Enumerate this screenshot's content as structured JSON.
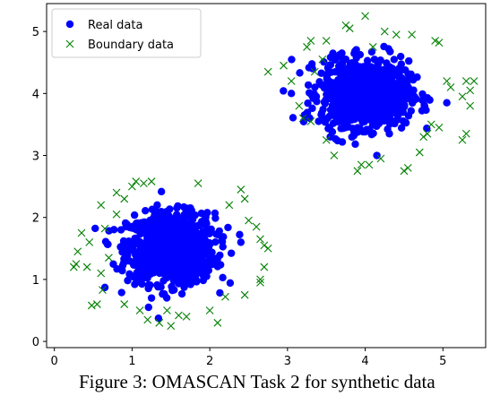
{
  "caption": "Figure 3: OMASCAN Task 2 for synthetic data",
  "chart_data": {
    "type": "scatter",
    "title": "",
    "xlabel": "",
    "ylabel": "",
    "xlim": [
      -0.1,
      5.55
    ],
    "ylim": [
      -0.1,
      5.45
    ],
    "xticks": [
      0,
      1,
      2,
      3,
      4,
      5
    ],
    "yticks": [
      0,
      1,
      2,
      3,
      4,
      5
    ],
    "grid": false,
    "legend_position": "top-left",
    "series": [
      {
        "name": "Real data",
        "marker": "circle",
        "color": "#0000ff",
        "clusters": [
          {
            "center": [
              1.5,
              1.5
            ],
            "std": [
              0.28,
              0.28
            ],
            "count": 1000
          },
          {
            "center": [
              4.0,
              4.0
            ],
            "std": [
              0.28,
              0.26
            ],
            "count": 1000
          }
        ],
        "outliers": [
          [
            0.65,
            0.87
          ],
          [
            1.25,
            0.7
          ],
          [
            2.4,
            1.6
          ],
          [
            3.7,
            4.65
          ],
          [
            3.55,
            3.3
          ],
          [
            4.15,
            3.0
          ],
          [
            5.05,
            3.85
          ],
          [
            3.05,
            4.0
          ],
          [
            4.3,
            4.72
          ]
        ]
      },
      {
        "name": "Boundary data",
        "marker": "x",
        "color": "#008000",
        "points": [
          [
            0.25,
            1.2
          ],
          [
            0.3,
            1.45
          ],
          [
            0.35,
            1.75
          ],
          [
            0.42,
            1.2
          ],
          [
            0.45,
            1.6
          ],
          [
            0.48,
            0.58
          ],
          [
            0.55,
            0.6
          ],
          [
            0.6,
            1.1
          ],
          [
            0.6,
            2.2
          ],
          [
            0.62,
            0.83
          ],
          [
            0.65,
            1.82
          ],
          [
            0.7,
            1.35
          ],
          [
            0.8,
            2.4
          ],
          [
            0.8,
            2.05
          ],
          [
            0.9,
            2.3
          ],
          [
            1.0,
            2.5
          ],
          [
            1.05,
            2.58
          ],
          [
            1.1,
            0.5
          ],
          [
            1.15,
            2.55
          ],
          [
            1.25,
            2.58
          ],
          [
            1.35,
            0.3
          ],
          [
            1.45,
            0.5
          ],
          [
            1.5,
            0.25
          ],
          [
            1.6,
            0.42
          ],
          [
            1.7,
            0.4
          ],
          [
            1.85,
            2.55
          ],
          [
            2.0,
            0.5
          ],
          [
            2.2,
            0.72
          ],
          [
            2.25,
            2.2
          ],
          [
            2.4,
            2.45
          ],
          [
            2.45,
            2.3
          ],
          [
            2.5,
            1.95
          ],
          [
            2.6,
            1.85
          ],
          [
            2.65,
            1.0
          ],
          [
            2.65,
            0.95
          ],
          [
            2.65,
            1.65
          ],
          [
            2.7,
            1.55
          ],
          [
            2.75,
            1.5
          ],
          [
            2.7,
            1.2
          ],
          [
            2.45,
            0.75
          ],
          [
            1.2,
            0.35
          ],
          [
            0.9,
            0.6
          ],
          [
            2.1,
            0.3
          ],
          [
            0.28,
            1.25
          ],
          [
            2.75,
            4.35
          ],
          [
            2.95,
            4.45
          ],
          [
            3.05,
            4.2
          ],
          [
            3.15,
            3.8
          ],
          [
            3.2,
            3.6
          ],
          [
            3.25,
            4.75
          ],
          [
            3.3,
            3.55
          ],
          [
            3.35,
            4.35
          ],
          [
            3.45,
            4.55
          ],
          [
            3.5,
            3.25
          ],
          [
            3.5,
            4.85
          ],
          [
            3.75,
            5.1
          ],
          [
            3.8,
            5.05
          ],
          [
            3.9,
            2.75
          ],
          [
            3.95,
            2.85
          ],
          [
            4.0,
            5.25
          ],
          [
            4.05,
            2.85
          ],
          [
            4.1,
            4.75
          ],
          [
            4.25,
            5.0
          ],
          [
            4.4,
            4.95
          ],
          [
            4.5,
            2.75
          ],
          [
            4.55,
            2.8
          ],
          [
            4.6,
            4.95
          ],
          [
            4.75,
            3.3
          ],
          [
            4.8,
            3.35
          ],
          [
            4.85,
            3.5
          ],
          [
            4.95,
            3.45
          ],
          [
            4.9,
            4.85
          ],
          [
            4.95,
            4.82
          ],
          [
            5.05,
            4.2
          ],
          [
            5.1,
            4.1
          ],
          [
            5.25,
            3.95
          ],
          [
            5.3,
            4.2
          ],
          [
            5.35,
            4.05
          ],
          [
            5.4,
            4.2
          ],
          [
            5.3,
            3.35
          ],
          [
            5.25,
            3.25
          ],
          [
            5.35,
            3.8
          ],
          [
            3.6,
            3.0
          ],
          [
            4.7,
            3.05
          ],
          [
            3.3,
            4.85
          ],
          [
            4.2,
            2.95
          ]
        ]
      }
    ]
  }
}
